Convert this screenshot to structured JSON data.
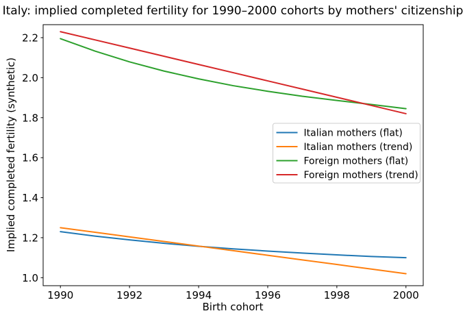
{
  "chart_data": {
    "type": "line",
    "title": "Italy: implied completed fertility for 1990–2000 cohorts by mothers' citizenship",
    "xlabel": "Birth cohort",
    "ylabel": "Implied completed fertility (synthetic)",
    "x": [
      1990,
      1991,
      1992,
      1993,
      1994,
      1995,
      1996,
      1997,
      1998,
      1999,
      2000
    ],
    "series": [
      {
        "name": "Italian mothers (flat)",
        "color": "#1f77b4",
        "values": [
          1.23,
          1.208,
          1.189,
          1.172,
          1.157,
          1.144,
          1.133,
          1.123,
          1.114,
          1.106,
          1.1
        ]
      },
      {
        "name": "Italian mothers (trend)",
        "color": "#ff7f0e",
        "values": [
          1.25,
          1.227,
          1.204,
          1.181,
          1.158,
          1.135,
          1.112,
          1.089,
          1.066,
          1.043,
          1.02
        ]
      },
      {
        "name": "Foreign mothers (flat)",
        "color": "#2ca02c",
        "values": [
          2.195,
          2.133,
          2.079,
          2.033,
          1.994,
          1.96,
          1.932,
          1.907,
          1.886,
          1.866,
          1.845
        ]
      },
      {
        "name": "Foreign mothers (trend)",
        "color": "#d62728",
        "values": [
          2.23,
          2.189,
          2.148,
          2.107,
          2.066,
          2.025,
          1.984,
          1.943,
          1.902,
          1.861,
          1.82
        ]
      }
    ],
    "xlim": [
      1989.5,
      2000.5
    ],
    "ylim": [
      0.96,
      2.265
    ],
    "xticks": [
      "1990",
      "1992",
      "1994",
      "1996",
      "1998",
      "2000"
    ],
    "yticks": [
      "1.0",
      "1.2",
      "1.4",
      "1.6",
      "1.8",
      "2.0",
      "2.2"
    ],
    "grid": false,
    "legend_position": "right-center-inside"
  },
  "colors": {
    "background": "#ffffff",
    "text": "#000000",
    "frame": "#000000",
    "legend_border": "#cccccc",
    "legend_background": "#ffffff"
  }
}
